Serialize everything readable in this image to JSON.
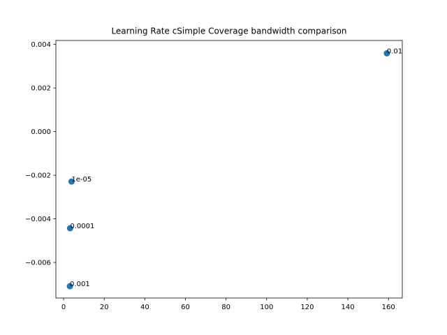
{
  "chart_data": {
    "type": "scatter",
    "title": "Learning Rate cSimple Coverage bandwidth comparison",
    "xlabel": "",
    "ylabel": "",
    "xlim": [
      -3.8,
      166.8
    ],
    "ylim": [
      -0.00763,
      0.00418
    ],
    "xticks": [
      0,
      20,
      40,
      60,
      80,
      100,
      120,
      140,
      160
    ],
    "xtick_labels": [
      "0",
      "20",
      "40",
      "60",
      "80",
      "100",
      "120",
      "140",
      "160"
    ],
    "yticks": [
      0.004,
      0.002,
      0.0,
      -0.002,
      -0.004,
      -0.006
    ],
    "ytick_labels": [
      "0.004",
      "0.002",
      "0.000",
      "−0.002",
      "−0.004",
      "−0.006"
    ],
    "grid": false,
    "marker_color": "#1f77b4",
    "points": [
      {
        "x": 159.2,
        "y": 0.00359,
        "label": "0.01"
      },
      {
        "x": 3.9,
        "y": -0.00229,
        "label": "1e-05"
      },
      {
        "x": 3.2,
        "y": -0.00443,
        "label": "0.0001"
      },
      {
        "x": 3.1,
        "y": -0.00709,
        "label": "0.001"
      }
    ]
  }
}
